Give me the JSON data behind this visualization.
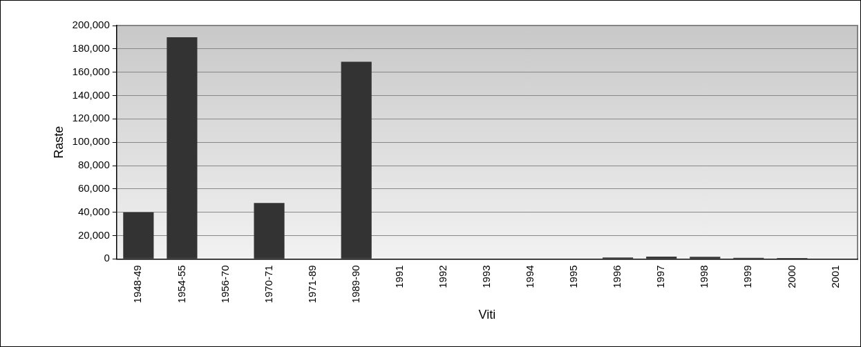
{
  "chart_data": {
    "type": "bar",
    "xlabel": "Viti",
    "ylabel": "Raste",
    "categories": [
      "1948-49",
      "1954-55",
      "1956-70",
      "1970-71",
      "1971-89",
      "1989-90",
      "1991",
      "1992",
      "1993",
      "1994",
      "1995",
      "1996",
      "1997",
      "1998",
      "1999",
      "2000",
      "2001"
    ],
    "series": [
      {
        "color": "#333333",
        "values": [
          40000,
          190000,
          0,
          48000,
          0,
          169000,
          0,
          0,
          0,
          0,
          0,
          1300,
          2000,
          1800,
          1000,
          800,
          0
        ]
      }
    ],
    "ylim": [
      0,
      200000
    ],
    "yticks": [
      {
        "value": 0,
        "label": "0"
      },
      {
        "value": 20000,
        "label": "20,000"
      },
      {
        "value": 40000,
        "label": "40,000"
      },
      {
        "value": 60000,
        "label": "60,000"
      },
      {
        "value": 80000,
        "label": "80,000"
      },
      {
        "value": 100000,
        "label": "100,000"
      },
      {
        "value": 120000,
        "label": "120,000"
      },
      {
        "value": 140000,
        "label": "140,000"
      },
      {
        "value": 160000,
        "label": "160,000"
      },
      {
        "value": 180000,
        "label": "180,000"
      },
      {
        "value": 200000,
        "label": "200,000"
      }
    ],
    "grid": "y",
    "legend": false
  }
}
